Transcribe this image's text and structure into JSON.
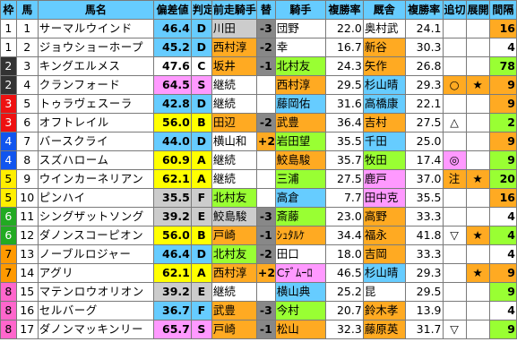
{
  "headers": [
    "枠",
    "馬",
    "馬名",
    "偏差値",
    "判定",
    "前走騎手",
    "替",
    "騎手",
    "複勝率",
    "厩舎",
    "複勝率",
    "追切",
    "展開",
    "間隔"
  ],
  "colors": {
    "header_bg": "#66ccff",
    "pink": "#ff99ff",
    "cyan": "#66ccff",
    "green": "#99ff33",
    "orange": "#ffaa22",
    "yellow": "#ffff00",
    "gray": "#cccccc",
    "white": "#ffffff"
  },
  "rows": [
    {
      "waku": "1",
      "uma": "1",
      "name": "サーマルウインド",
      "dev": "46.4",
      "judge": "D",
      "prev": "川田",
      "chg": "-3",
      "jockey": "団野",
      "jrate": "22.0",
      "trainer": "奥村武",
      "trate": "24.1",
      "oikiri": "",
      "tenkai": "",
      "interval": "16"
    },
    {
      "waku": "1",
      "uma": "2",
      "name": "ジョウショーホープ",
      "dev": "45.2",
      "judge": "D",
      "prev": "西村淳",
      "chg": "-2",
      "jockey": "幸",
      "jrate": "16.7",
      "trainer": "新谷",
      "trate": "30.3",
      "oikiri": "",
      "tenkai": "",
      "interval": "4"
    },
    {
      "waku": "2",
      "uma": "3",
      "name": "キングエルメス",
      "dev": "47.6",
      "judge": "C",
      "prev": "坂井",
      "chg": "-1",
      "jockey": "北村友",
      "jrate": "24.3",
      "trainer": "矢作",
      "trate": "26.8",
      "oikiri": "",
      "tenkai": "",
      "interval": "78"
    },
    {
      "waku": "2",
      "uma": "4",
      "name": "クランフォード",
      "dev": "64.5",
      "judge": "S",
      "prev": "継続",
      "chg": "",
      "jockey": "西村淳",
      "jrate": "29.5",
      "trainer": "杉山晴",
      "trate": "29.3",
      "oikiri": "○",
      "tenkai": "★",
      "interval": "9"
    },
    {
      "waku": "3",
      "uma": "5",
      "name": "トゥラヴェスーラ",
      "dev": "42.8",
      "judge": "D",
      "prev": "継続",
      "chg": "",
      "jockey": "藤岡佑",
      "jrate": "31.6",
      "trainer": "高橋康",
      "trate": "22.1",
      "oikiri": "",
      "tenkai": "",
      "interval": "9"
    },
    {
      "waku": "3",
      "uma": "6",
      "name": "オフトレイル",
      "dev": "56.0",
      "judge": "B",
      "prev": "田辺",
      "chg": "-2",
      "jockey": "武豊",
      "jrate": "36.4",
      "trainer": "吉村",
      "trate": "27.5",
      "oikiri": "△",
      "tenkai": "",
      "interval": "2"
    },
    {
      "waku": "4",
      "uma": "7",
      "name": "バースクライ",
      "dev": "44.0",
      "judge": "D",
      "prev": "横山和",
      "chg": "+2",
      "jockey": "岩田望",
      "jrate": "35.5",
      "trainer": "千田",
      "trate": "25.0",
      "oikiri": "",
      "tenkai": "",
      "interval": "9"
    },
    {
      "waku": "4",
      "uma": "8",
      "name": "スズハローム",
      "dev": "60.9",
      "judge": "A",
      "prev": "継続",
      "chg": "",
      "jockey": "鮫島駿",
      "jrate": "35.7",
      "trainer": "牧田",
      "trate": "17.4",
      "oikiri": "◎",
      "tenkai": "",
      "interval": "9"
    },
    {
      "waku": "5",
      "uma": "9",
      "name": "ウインカーネリアン",
      "dev": "62.1",
      "judge": "A",
      "prev": "継続",
      "chg": "",
      "jockey": "三浦",
      "jrate": "27.5",
      "trainer": "鹿戸",
      "trate": "37.0",
      "oikiri": "注",
      "tenkai": "★",
      "interval": "20"
    },
    {
      "waku": "5",
      "uma": "10",
      "name": "ピンハイ",
      "dev": "35.5",
      "judge": "F",
      "prev": "北村友",
      "chg": "",
      "jockey": "高倉",
      "jrate": "7.7",
      "trainer": "田中克",
      "trate": "35.5",
      "oikiri": "",
      "tenkai": "",
      "interval": "16"
    },
    {
      "waku": "6",
      "uma": "11",
      "name": "シングザットソング",
      "dev": "39.2",
      "judge": "E",
      "prev": "鮫島駿",
      "chg": "-3",
      "jockey": "斎藤",
      "jrate": "23.0",
      "trainer": "高野",
      "trate": "33.3",
      "oikiri": "",
      "tenkai": "",
      "interval": "4"
    },
    {
      "waku": "6",
      "uma": "12",
      "name": "ダノンスコーピオン",
      "dev": "56.0",
      "judge": "B",
      "prev": "戸崎",
      "chg": "-1",
      "jockey": "ｼｭﾀﾙｹ",
      "jrate": "34.4",
      "trainer": "福永",
      "trate": "41.8",
      "oikiri": "▽",
      "tenkai": "★",
      "interval": "4"
    },
    {
      "waku": "7",
      "uma": "13",
      "name": "ノーブルロジャー",
      "dev": "46.4",
      "judge": "D",
      "prev": "北村友",
      "chg": "-2",
      "jockey": "田口",
      "jrate": "18.0",
      "trainer": "吉岡",
      "trate": "33.3",
      "oikiri": "",
      "tenkai": "",
      "interval": "4"
    },
    {
      "waku": "7",
      "uma": "14",
      "name": "アグリ",
      "dev": "62.1",
      "judge": "A",
      "prev": "西村淳",
      "chg": "+2",
      "jockey": "Cﾃﾞﾑｰﾛ",
      "jrate": "46.5",
      "trainer": "杉山晴",
      "trate": "29.3",
      "oikiri": "",
      "tenkai": "★",
      "interval": "9"
    },
    {
      "waku": "8",
      "uma": "15",
      "name": "マテンロウオリオン",
      "dev": "39.2",
      "judge": "E",
      "prev": "継続",
      "chg": "",
      "jockey": "横山典",
      "jrate": "25.2",
      "trainer": "昆",
      "trate": "29.5",
      "oikiri": "",
      "tenkai": "",
      "interval": "9"
    },
    {
      "waku": "8",
      "uma": "16",
      "name": "セルバーグ",
      "dev": "36.7",
      "judge": "F",
      "prev": "武豊",
      "chg": "-3",
      "jockey": "今村",
      "jrate": "20.7",
      "trainer": "鈴木孝",
      "trate": "13.9",
      "oikiri": "",
      "tenkai": "",
      "interval": "4"
    },
    {
      "waku": "8",
      "uma": "17",
      "name": "ダノンマッキンリー",
      "dev": "65.7",
      "judge": "S",
      "prev": "戸崎",
      "chg": "-1",
      "jockey": "松山",
      "jrate": "32.3",
      "trainer": "藤原英",
      "trate": "31.7",
      "oikiri": "▽",
      "tenkai": "",
      "interval": "9"
    }
  ]
}
